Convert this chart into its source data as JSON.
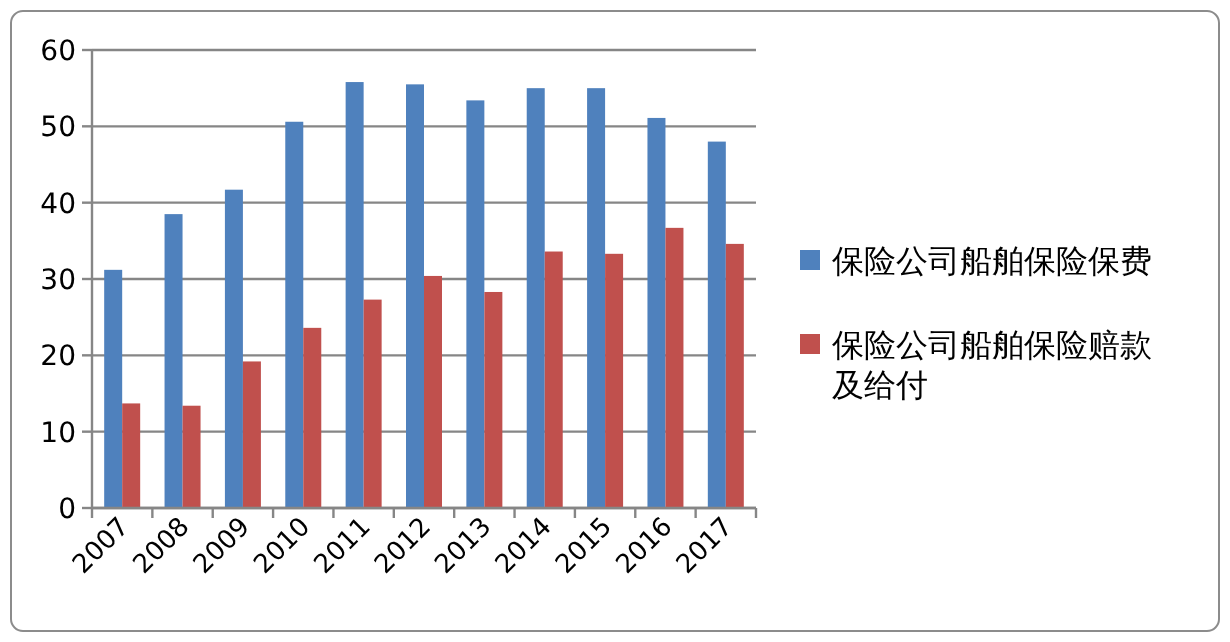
{
  "chart_data": {
    "type": "bar",
    "categories": [
      "2007",
      "2008",
      "2009",
      "2010",
      "2011",
      "2012",
      "2013",
      "2014",
      "2015",
      "2016",
      "2017"
    ],
    "series": [
      {
        "name": "保险公司船舶保险保费",
        "color": "#4f81bd",
        "values": [
          31.2,
          38.5,
          41.7,
          50.6,
          55.8,
          55.5,
          53.4,
          55.0,
          55.0,
          51.1,
          48.0
        ]
      },
      {
        "name": "保险公司船舶保险赔款及给付",
        "color": "#c0504d",
        "values": [
          13.7,
          13.4,
          19.2,
          23.6,
          27.3,
          30.4,
          28.3,
          33.6,
          33.3,
          36.7,
          34.6
        ]
      }
    ],
    "ylim": [
      0,
      60
    ],
    "yticks": [
      0,
      10,
      20,
      30,
      40,
      50,
      60
    ],
    "grid": "y",
    "legend": "right"
  }
}
